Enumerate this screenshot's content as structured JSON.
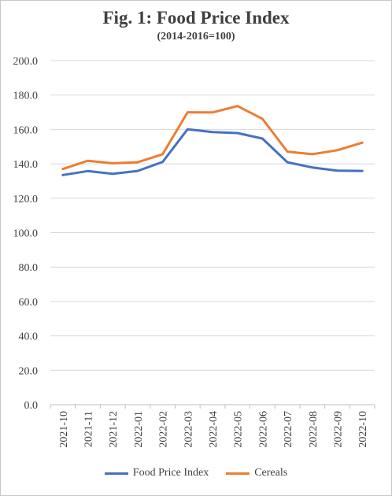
{
  "chart_data": {
    "type": "line",
    "title": "Fig. 1: Food Price Index",
    "subtitle": "(2014-2016=100)",
    "categories": [
      "2021-10",
      "2021-11",
      "2021-12",
      "2022-01",
      "2022-02",
      "2022-03",
      "2022-04",
      "2022-05",
      "2022-06",
      "2022-07",
      "2022-08",
      "2022-09",
      "2022-10"
    ],
    "y_ticks": [
      "0.0",
      "20.0",
      "40.0",
      "60.0",
      "80.0",
      "100.0",
      "120.0",
      "140.0",
      "160.0",
      "180.0",
      "200.0"
    ],
    "ylim": [
      0,
      200
    ],
    "grid": true,
    "legend_position": "bottom",
    "series": [
      {
        "name": "Food Price Index",
        "color": "#4472C4",
        "values": [
          133.5,
          135.8,
          134.2,
          135.9,
          141.1,
          160.1,
          158.5,
          157.9,
          154.7,
          140.9,
          137.9,
          136.0,
          135.9
        ]
      },
      {
        "name": "Cereals",
        "color": "#ED7D31",
        "values": [
          137.0,
          141.8,
          140.3,
          140.9,
          145.6,
          170.0,
          169.9,
          173.6,
          166.2,
          147.1,
          145.6,
          147.9,
          152.3
        ]
      }
    ]
  }
}
